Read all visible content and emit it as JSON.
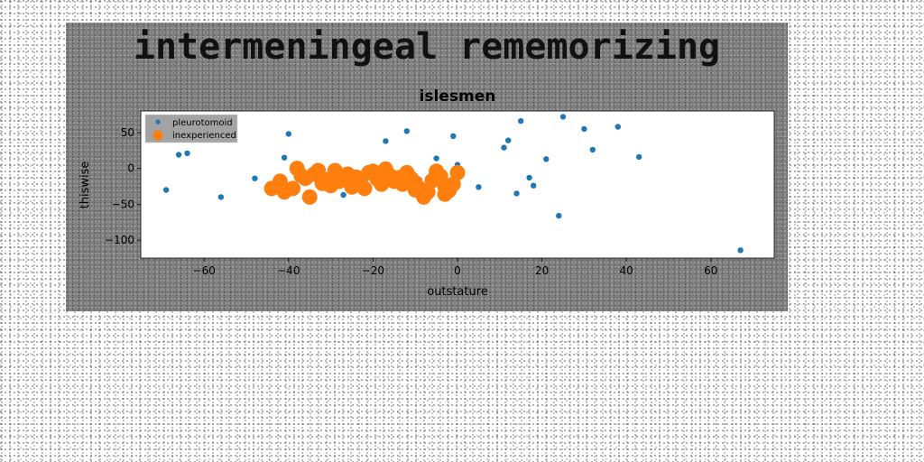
{
  "suptitle": "intermeningeal rememorizing",
  "chart_data": {
    "type": "scatter",
    "title": "islesmen",
    "xlabel": "outstature",
    "ylabel": "thiswise",
    "xlim": [
      -75,
      75
    ],
    "ylim": [
      -125,
      80
    ],
    "xticks": [
      -60,
      -40,
      -20,
      0,
      20,
      40,
      60
    ],
    "yticks": [
      50,
      0,
      -50,
      -100
    ],
    "xtick_labels": [
      "−60",
      "−40",
      "−20",
      "0",
      "20",
      "40",
      "60"
    ],
    "ytick_labels": [
      "50",
      "0",
      "−50",
      "−100"
    ],
    "grid": false,
    "legend_position": "top-left",
    "series": [
      {
        "name": "pleurotomoid",
        "color": "#1f77b4",
        "marker_size": "small",
        "points": [
          [
            -69,
            -30
          ],
          [
            -66,
            19
          ],
          [
            -64,
            21
          ],
          [
            -56,
            -40
          ],
          [
            -48,
            -14
          ],
          [
            -41,
            15
          ],
          [
            -40,
            48
          ],
          [
            -27,
            -37
          ],
          [
            -17,
            38
          ],
          [
            -12,
            52
          ],
          [
            -5,
            14
          ],
          [
            -1,
            45
          ],
          [
            5,
            -26
          ],
          [
            11,
            29
          ],
          [
            12,
            39
          ],
          [
            14,
            -35
          ],
          [
            15,
            66
          ],
          [
            17,
            -13
          ],
          [
            18,
            -24
          ],
          [
            21,
            13
          ],
          [
            24,
            -66
          ],
          [
            25,
            72
          ],
          [
            30,
            55
          ],
          [
            32,
            26
          ],
          [
            38,
            58
          ],
          [
            43,
            16
          ],
          [
            67,
            -114
          ],
          [
            -18,
            -28
          ],
          [
            -9,
            -16
          ],
          [
            0,
            5
          ]
        ]
      },
      {
        "name": "inexperienced",
        "color": "#ff7f0e",
        "marker_size": "large",
        "points": [
          [
            -42,
            -18
          ],
          [
            -41,
            -33
          ],
          [
            -39,
            -28
          ],
          [
            -38,
            0
          ],
          [
            -37,
            -10
          ],
          [
            -36,
            -14
          ],
          [
            -35,
            -40
          ],
          [
            -34,
            -8
          ],
          [
            -33,
            -3
          ],
          [
            -32,
            -21
          ],
          [
            -31,
            -16
          ],
          [
            -30,
            -24
          ],
          [
            -29,
            -3
          ],
          [
            -28,
            -18
          ],
          [
            -27,
            -13
          ],
          [
            -26,
            -8
          ],
          [
            -25,
            -26
          ],
          [
            -24,
            -12
          ],
          [
            -23,
            -20
          ],
          [
            -22,
            -28
          ],
          [
            -21,
            -6
          ],
          [
            -20,
            -4
          ],
          [
            -19,
            -15
          ],
          [
            -18,
            -22
          ],
          [
            -17,
            -1
          ],
          [
            -16,
            -10
          ],
          [
            -15,
            -18
          ],
          [
            -14,
            -13
          ],
          [
            -13,
            -22
          ],
          [
            -12,
            -6
          ],
          [
            -11,
            -14
          ],
          [
            -10,
            -20
          ],
          [
            -9,
            -28
          ],
          [
            -8,
            -40
          ],
          [
            -7,
            -33
          ],
          [
            -6,
            -17
          ],
          [
            -5,
            -4
          ],
          [
            -4,
            -11
          ],
          [
            -3,
            -25
          ],
          [
            -2,
            -31
          ],
          [
            -1,
            -22
          ],
          [
            0,
            -6
          ],
          [
            -3,
            -36
          ],
          [
            -10,
            -30
          ],
          [
            -44,
            -28
          ]
        ]
      }
    ]
  }
}
